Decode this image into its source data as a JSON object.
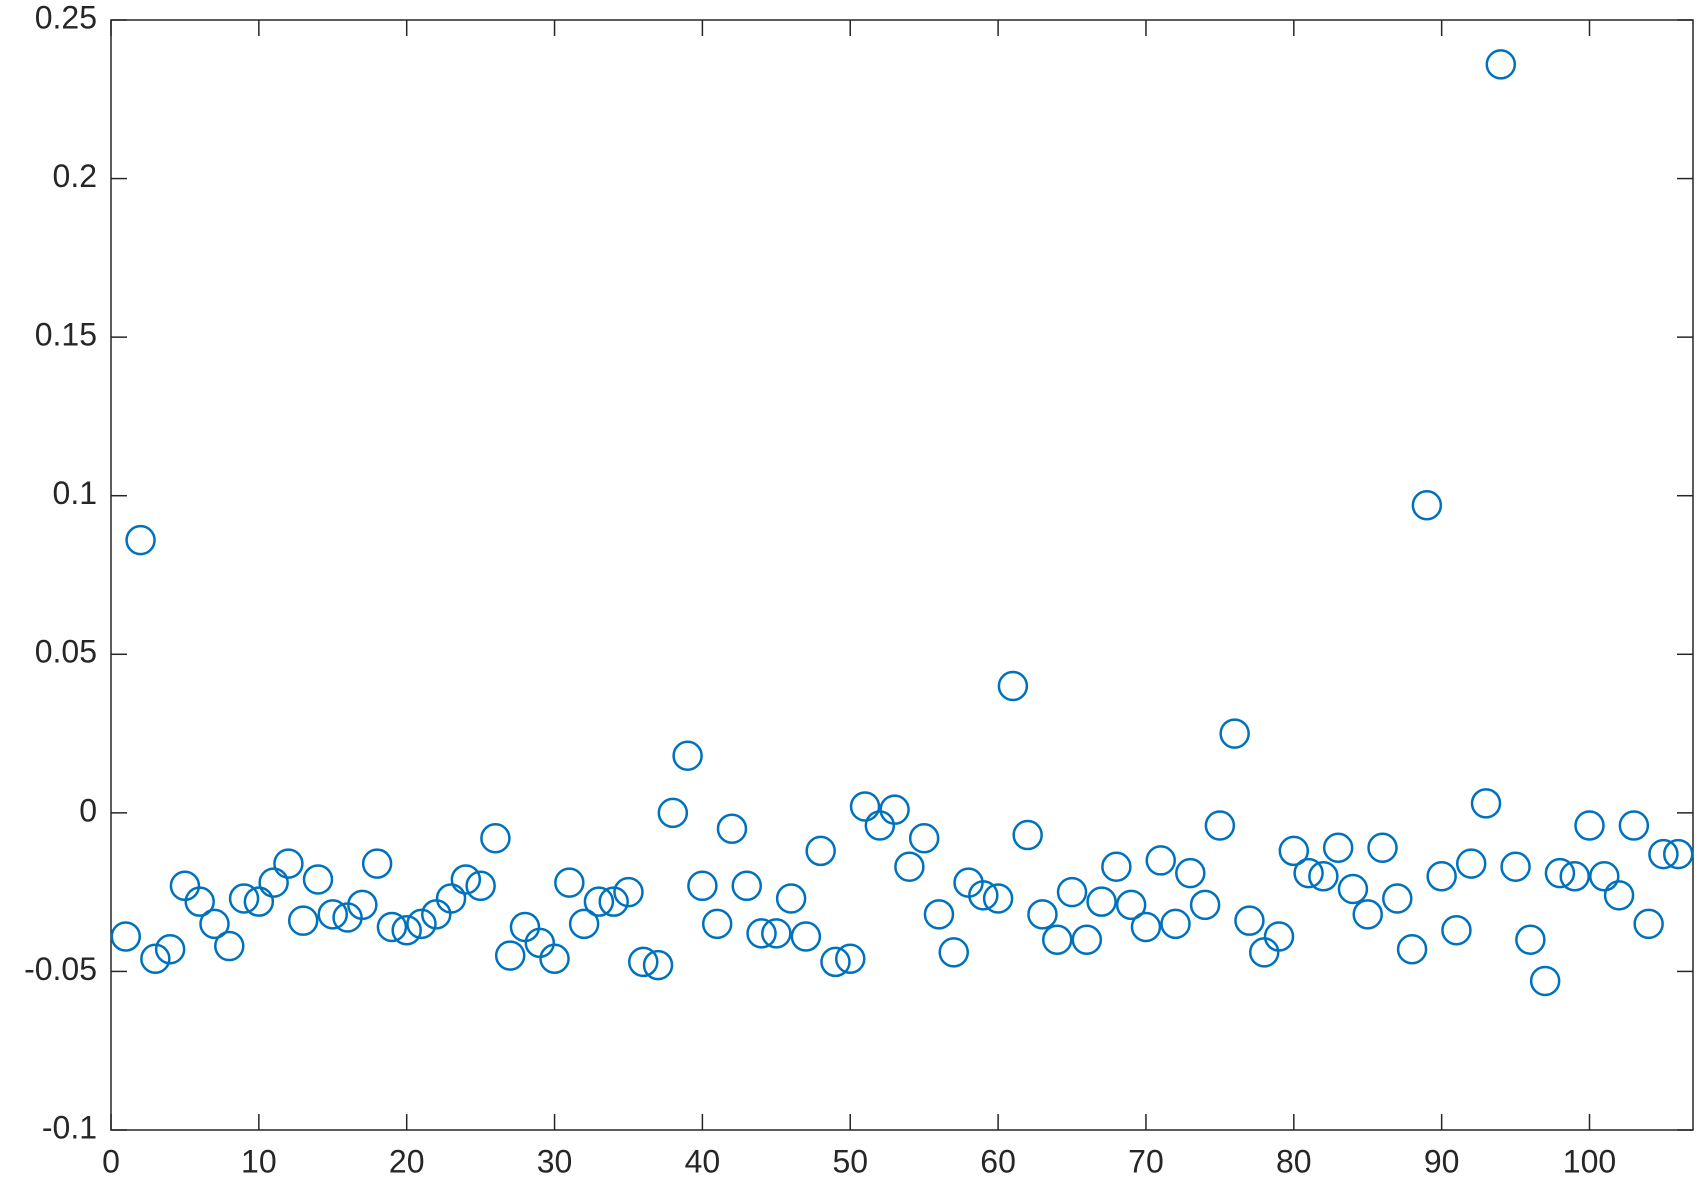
{
  "chart_data": {
    "type": "scatter",
    "marker": "circle-open",
    "color": "#0072bd",
    "x": [
      1,
      2,
      3,
      4,
      5,
      6,
      7,
      8,
      9,
      10,
      11,
      12,
      13,
      14,
      15,
      16,
      17,
      18,
      19,
      20,
      21,
      22,
      23,
      24,
      25,
      26,
      27,
      28,
      29,
      30,
      31,
      32,
      33,
      34,
      35,
      36,
      37,
      38,
      39,
      40,
      41,
      42,
      43,
      44,
      45,
      46,
      47,
      48,
      49,
      50,
      51,
      52,
      53,
      54,
      55,
      56,
      57,
      58,
      59,
      60,
      61,
      62,
      63,
      64,
      65,
      66,
      67,
      68,
      69,
      70,
      71,
      72,
      73,
      74,
      75,
      76,
      77,
      78,
      79,
      80,
      81,
      82,
      83,
      84,
      85,
      86,
      87,
      88,
      89,
      90,
      91,
      92,
      93,
      94,
      95,
      96,
      97,
      98,
      99,
      100,
      101,
      102,
      103,
      104,
      105,
      106
    ],
    "values": [
      -0.039,
      0.086,
      -0.046,
      -0.043,
      -0.023,
      -0.028,
      -0.035,
      -0.042,
      -0.027,
      -0.028,
      -0.022,
      -0.016,
      -0.034,
      -0.021,
      -0.032,
      -0.033,
      -0.029,
      -0.016,
      -0.036,
      -0.037,
      -0.035,
      -0.032,
      -0.027,
      -0.021,
      -0.023,
      -0.008,
      -0.045,
      -0.036,
      -0.041,
      -0.046,
      -0.022,
      -0.035,
      -0.028,
      -0.028,
      -0.025,
      -0.047,
      -0.048,
      0.0,
      0.018,
      -0.023,
      -0.035,
      -0.005,
      -0.023,
      -0.038,
      -0.038,
      -0.027,
      -0.039,
      -0.012,
      -0.047,
      -0.046,
      0.002,
      -0.004,
      0.001,
      -0.017,
      -0.008,
      -0.032,
      -0.044,
      -0.022,
      -0.026,
      -0.027,
      0.04,
      -0.007,
      -0.032,
      -0.04,
      -0.025,
      -0.04,
      -0.028,
      -0.017,
      -0.029,
      -0.036,
      -0.015,
      -0.035,
      -0.019,
      -0.029,
      -0.004,
      0.025,
      -0.034,
      -0.044,
      -0.039,
      -0.012,
      -0.019,
      -0.02,
      -0.011,
      -0.024,
      -0.032,
      -0.011,
      -0.027,
      -0.043,
      0.097,
      -0.02,
      -0.037,
      -0.016,
      0.003,
      0.236,
      -0.017,
      -0.04,
      -0.053,
      -0.019,
      -0.02,
      -0.004,
      -0.02,
      -0.026,
      -0.004,
      -0.035,
      -0.013,
      -0.013
    ],
    "xlim": [
      0,
      107
    ],
    "xticks": [
      0,
      10,
      20,
      30,
      40,
      50,
      60,
      70,
      80,
      90,
      100
    ],
    "ylim": [
      -0.1,
      0.25
    ],
    "yticks": [
      -0.1,
      -0.05,
      0,
      0.05,
      0.1,
      0.15,
      0.2,
      0.25
    ],
    "grid": false,
    "box": true
  }
}
